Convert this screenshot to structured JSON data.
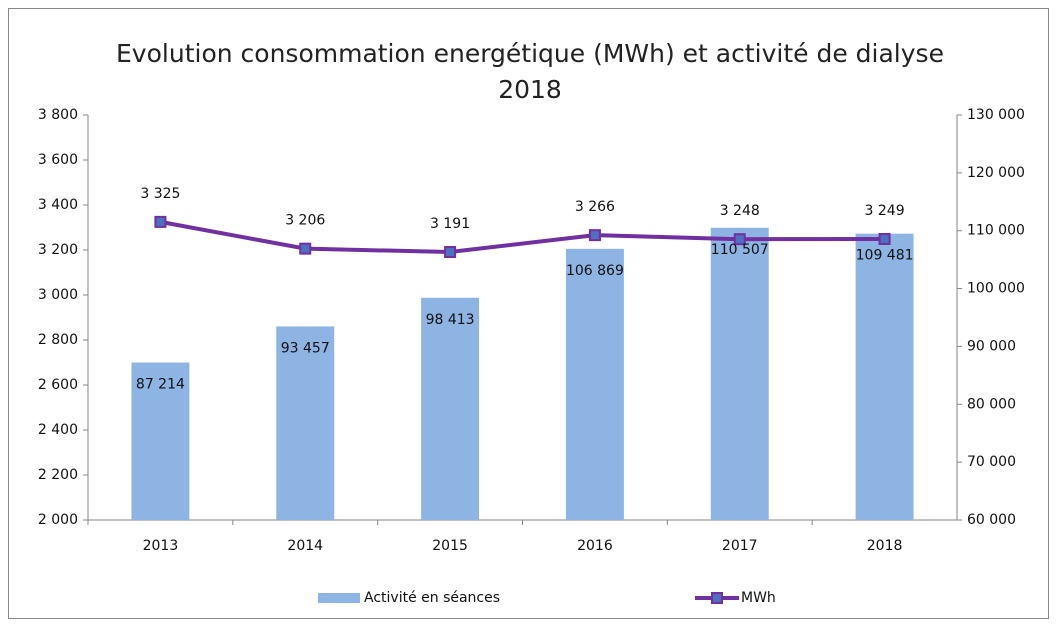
{
  "chart_data": {
    "type": "combo",
    "title": "Evolution consommation energétique (MWh) et activité de dialyse 2018",
    "categories": [
      "2013",
      "2014",
      "2015",
      "2016",
      "2017",
      "2018"
    ],
    "series": [
      {
        "name": "Activité en séances",
        "type": "bar",
        "axis": "y2",
        "color": "#8eb4e3",
        "values": [
          87214,
          93457,
          98413,
          106869,
          110507,
          109481
        ],
        "value_labels": [
          "87 214",
          "93 457",
          "98 413",
          "106 869",
          "110 507",
          "109 481"
        ]
      },
      {
        "name": "MWh",
        "type": "line",
        "axis": "y",
        "color": "#7030a0",
        "marker_color": "#4f6fc0",
        "values": [
          3325,
          3206,
          3191,
          3266,
          3248,
          3249
        ],
        "value_labels": [
          "3 325",
          "3 206",
          "3 191",
          "3 266",
          "3 248",
          "3 249"
        ]
      }
    ],
    "ylim": [
      2000,
      3800
    ],
    "yticks": [
      {
        "value": 2000,
        "label": "2 000"
      },
      {
        "value": 2200,
        "label": "2 200"
      },
      {
        "value": 2400,
        "label": "2 400"
      },
      {
        "value": 2600,
        "label": "2 600"
      },
      {
        "value": 2800,
        "label": "2 800"
      },
      {
        "value": 3000,
        "label": "3 000"
      },
      {
        "value": 3200,
        "label": "3 200"
      },
      {
        "value": 3400,
        "label": "3 400"
      },
      {
        "value": 3600,
        "label": "3 600"
      },
      {
        "value": 3800,
        "label": "3 800"
      }
    ],
    "y2lim": [
      60000,
      130000
    ],
    "y2ticks": [
      {
        "value": 60000,
        "label": "60 000"
      },
      {
        "value": 70000,
        "label": "70 000"
      },
      {
        "value": 80000,
        "label": "80 000"
      },
      {
        "value": 90000,
        "label": "90 000"
      },
      {
        "value": 100000,
        "label": "100 000"
      },
      {
        "value": 110000,
        "label": "110 000"
      },
      {
        "value": 120000,
        "label": "120 000"
      },
      {
        "value": 130000,
        "label": "130 000"
      }
    ],
    "grid": false,
    "legend": "bottom"
  }
}
